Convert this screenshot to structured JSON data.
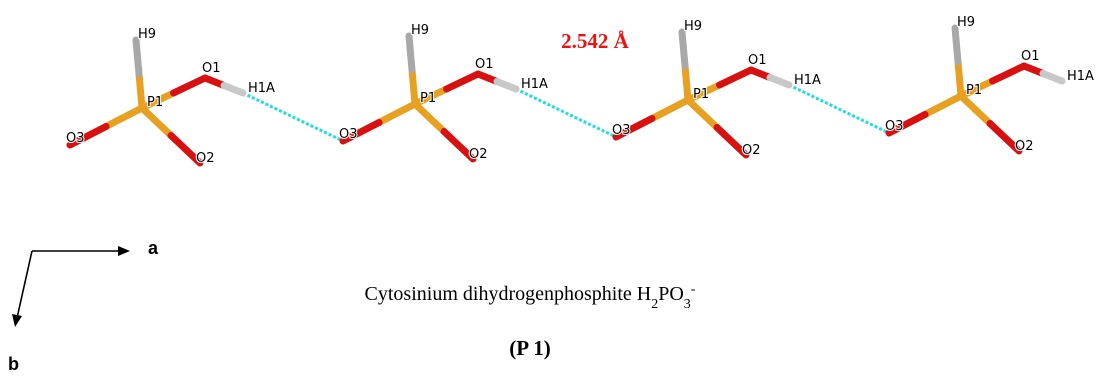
{
  "units": [
    {
      "labels": {
        "H9": "H9",
        "O1": "O1",
        "H1A": "H1A",
        "P1": "P1",
        "O3": "O3",
        "O2": "O2"
      }
    },
    {
      "labels": {
        "H9": "H9",
        "O1": "O1",
        "H1A": "H1A",
        "P1": "P1",
        "O3": "O3",
        "O2": "O2"
      }
    },
    {
      "labels": {
        "H9": "H9",
        "O1": "O1",
        "H1A": "H1A",
        "P1": "P1",
        "O3": "O3",
        "O2": "O2"
      }
    },
    {
      "labels": {
        "H9": "H9",
        "O1": "O1",
        "H1A": "H1A",
        "P1": "P1",
        "O3": "O3",
        "O2": "O2"
      }
    }
  ],
  "distance": "2.542 Å",
  "axes": {
    "a": "a",
    "b": "b"
  },
  "caption": [
    "Cytosinium dihydrogenphosphite H",
    "2",
    "PO",
    "3",
    "-"
  ],
  "space_group": "(P 1)"
}
